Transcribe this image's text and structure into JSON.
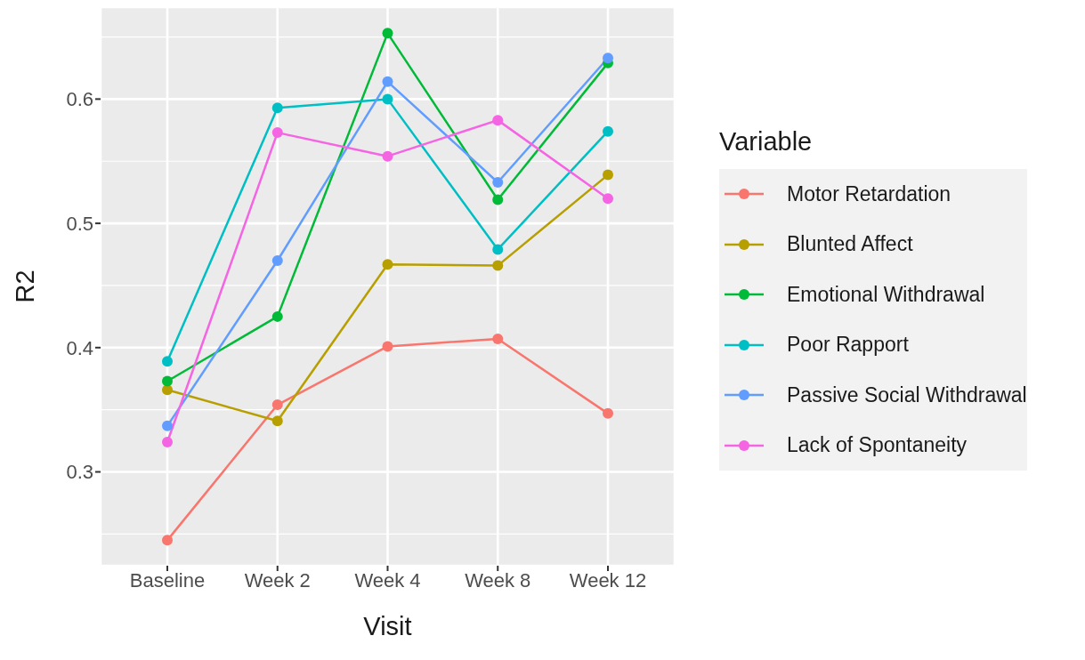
{
  "chart_data": {
    "type": "line",
    "xlabel": "Visit",
    "ylabel": "R2",
    "legend_title": "Variable",
    "categories": [
      "Baseline",
      "Week 2",
      "Week 4",
      "Week 8",
      "Week 12"
    ],
    "series": [
      {
        "name": "Motor Retardation",
        "color": "#f8766d",
        "values": [
          0.245,
          0.354,
          0.401,
          0.407,
          0.347
        ]
      },
      {
        "name": "Blunted Affect",
        "color": "#b79f00",
        "values": [
          0.366,
          0.341,
          0.467,
          0.466,
          0.539
        ]
      },
      {
        "name": "Emotional Withdrawal",
        "color": "#00ba38",
        "values": [
          0.373,
          0.425,
          0.653,
          0.519,
          0.629
        ]
      },
      {
        "name": "Poor Rapport",
        "color": "#00bfc4",
        "values": [
          0.389,
          0.593,
          0.6,
          0.479,
          0.574
        ]
      },
      {
        "name": "Passive Social Withdrawal",
        "color": "#619cff",
        "values": [
          0.337,
          0.47,
          0.614,
          0.533,
          0.633
        ]
      },
      {
        "name": "Lack of Spontaneity",
        "color": "#f564e3",
        "values": [
          0.324,
          0.573,
          0.554,
          0.583,
          0.52
        ]
      }
    ],
    "ylim": [
      0.2245,
      0.674
    ],
    "yticks": [
      0.3,
      0.4,
      0.5,
      0.6
    ],
    "grid": true,
    "legend": "right",
    "marker": "circle",
    "line_style": "solid"
  }
}
